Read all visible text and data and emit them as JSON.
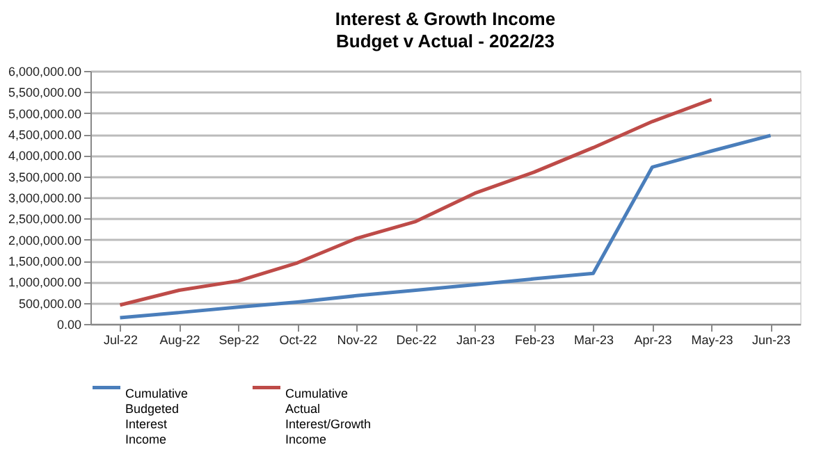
{
  "chart_data": {
    "type": "line",
    "title": "Interest & Growth Income",
    "subtitle": "Budget v Actual -  2022/23",
    "categories": [
      "Jul-22",
      "Aug-22",
      "Sep-22",
      "Oct-22",
      "Nov-22",
      "Dec-22",
      "Jan-23",
      "Feb-23",
      "Mar-23",
      "Apr-23",
      "May-23",
      "Jun-23"
    ],
    "series": [
      {
        "name": "Cumulative Budgeted Interest Income",
        "color": "#4a7ebb",
        "values": [
          150000,
          270000,
          400000,
          520000,
          670000,
          800000,
          930000,
          1070000,
          1200000,
          3720000,
          4100000,
          4470000
        ]
      },
      {
        "name": "Cumulative Actual Interest/Growth Income",
        "color": "#be4b48",
        "values": [
          450000,
          800000,
          1020000,
          1450000,
          2030000,
          2430000,
          3100000,
          3600000,
          4180000,
          4800000,
          5320000,
          null
        ]
      }
    ],
    "ylim": [
      0,
      6000000
    ],
    "yticks": [
      {
        "value": 0,
        "label": "0.00"
      },
      {
        "value": 500000,
        "label": "500,000.00"
      },
      {
        "value": 1000000,
        "label": "1,000,000.00"
      },
      {
        "value": 1500000,
        "label": "1,500,000.00"
      },
      {
        "value": 2000000,
        "label": "2,000,000.00"
      },
      {
        "value": 2500000,
        "label": "2,500,000.00"
      },
      {
        "value": 3000000,
        "label": "3,000,000.00"
      },
      {
        "value": 3500000,
        "label": "3,500,000.00"
      },
      {
        "value": 4000000,
        "label": "4,000,000.00"
      },
      {
        "value": 4500000,
        "label": "4,500,000.00"
      },
      {
        "value": 5000000,
        "label": "5,000,000.00"
      },
      {
        "value": 5500000,
        "label": "5,500,000.00"
      },
      {
        "value": 6000000,
        "label": "6,000,000.00"
      }
    ],
    "grid": "y",
    "legend": "bottom",
    "marker": "none",
    "line_style": "solid"
  }
}
